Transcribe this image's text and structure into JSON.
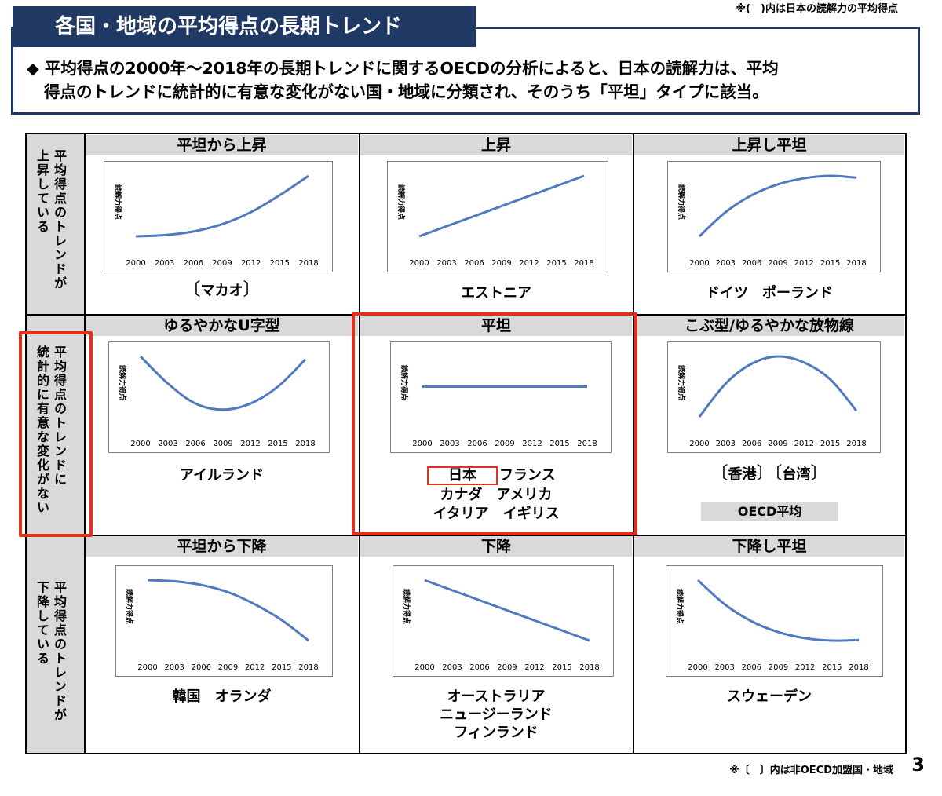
{
  "title": "各国・地域の平均得点の長期トレンド",
  "top_note": "※(　)内は日本の読解力の平均得点",
  "summary": {
    "line1": "◆ 平均得点の2000年～2018年の長期トレンドに関するOECDの分析によると、日本の読解力は、平均",
    "line2": "得点のトレンドに統計的に有意な変化がない国・地域に分類され、そのうち「平坦」タイプに該当。"
  },
  "rows": [
    {
      "label_main": "平均得点のトレンドが",
      "label_sub": "上昇している"
    },
    {
      "label_main": "平均得点のトレンドに",
      "label_sub": "統計的に有意な変化がない"
    },
    {
      "label_main": "平均得点のトレンドが",
      "label_sub": "下降している"
    }
  ],
  "cells": [
    {
      "category": "平坦から上昇",
      "countries": [
        "マカオ"
      ]
    },
    {
      "category": "上昇",
      "countries": [
        "エストニア"
      ]
    },
    {
      "category": "上昇し平坦",
      "countries": [
        "ドイツ　ポーランド"
      ]
    },
    {
      "category": "ゆるやかなU字型",
      "countries": [
        "アイルランド"
      ]
    },
    {
      "category": "平坦",
      "countries": [
        "日本",
        "フランス",
        "カナダ　アメリカ",
        "イタリア　イギリス"
      ]
    },
    {
      "category": "こぶ型/ゆるやかな放物線",
      "countries": [
        "香港",
        "台湾"
      ],
      "oecd_avg": "OECD平均"
    },
    {
      "category": "平坦から下降",
      "countries": [
        "韓国　オランダ"
      ]
    },
    {
      "category": "下降",
      "countries": [
        "オーストラリア",
        "ニュージーランド",
        "フィンランド"
      ]
    },
    {
      "category": "下降し平坦",
      "countries": [
        "スウェーデン"
      ]
    }
  ],
  "chart_data": [
    {
      "type": "line",
      "ylabel": "読解力得点",
      "x": [
        2000,
        2003,
        2006,
        2009,
        2012,
        2015,
        2018
      ],
      "shape": "flat-then-rise",
      "trend": [
        0.0,
        0.02,
        0.08,
        0.2,
        0.4,
        0.68,
        1.0
      ]
    },
    {
      "type": "line",
      "ylabel": "読解力得点",
      "x": [
        2000,
        2003,
        2006,
        2009,
        2012,
        2015,
        2018
      ],
      "shape": "rise",
      "trend": [
        0.0,
        0.167,
        0.333,
        0.5,
        0.667,
        0.833,
        1.0
      ]
    },
    {
      "type": "line",
      "ylabel": "読解力得点",
      "x": [
        2000,
        2003,
        2006,
        2009,
        2012,
        2015,
        2018
      ],
      "shape": "rise-then-flat",
      "trend": [
        0.0,
        0.4,
        0.68,
        0.86,
        0.96,
        1.0,
        0.97
      ]
    },
    {
      "type": "line",
      "ylabel": "読解力得点",
      "x": [
        2000,
        2003,
        2006,
        2009,
        2012,
        2015,
        2018
      ],
      "shape": "u-shape",
      "trend": [
        1.0,
        0.55,
        0.22,
        0.12,
        0.22,
        0.5,
        0.95
      ]
    },
    {
      "type": "line",
      "ylabel": "読解力得点",
      "x": [
        2000,
        2003,
        2006,
        2009,
        2012,
        2015,
        2018
      ],
      "shape": "flat",
      "trend": [
        0.5,
        0.5,
        0.5,
        0.5,
        0.5,
        0.5,
        0.5
      ]
    },
    {
      "type": "line",
      "ylabel": "読解力得点",
      "x": [
        2000,
        2003,
        2006,
        2009,
        2012,
        2015,
        2018
      ],
      "shape": "hump",
      "trend": [
        0.0,
        0.55,
        0.88,
        1.0,
        0.9,
        0.62,
        0.1
      ]
    },
    {
      "type": "line",
      "ylabel": "読解力得点",
      "x": [
        2000,
        2003,
        2006,
        2009,
        2012,
        2015,
        2018
      ],
      "shape": "flat-then-decline",
      "trend": [
        1.0,
        0.98,
        0.92,
        0.8,
        0.6,
        0.34,
        0.0
      ]
    },
    {
      "type": "line",
      "ylabel": "読解力得点",
      "x": [
        2000,
        2003,
        2006,
        2009,
        2012,
        2015,
        2018
      ],
      "shape": "decline",
      "trend": [
        1.0,
        0.833,
        0.667,
        0.5,
        0.333,
        0.167,
        0.0
      ]
    },
    {
      "type": "line",
      "ylabel": "読解力得点",
      "x": [
        2000,
        2003,
        2006,
        2009,
        2012,
        2015,
        2018
      ],
      "shape": "decline-then-flat",
      "trend": [
        1.0,
        0.6,
        0.32,
        0.14,
        0.04,
        0.0,
        0.01
      ]
    }
  ],
  "colors": {
    "title_bg": "#1f3864",
    "line": "#4f7ac0",
    "highlight": "#e0301e",
    "category_bg": "#d9d9d9"
  },
  "bottom_note": "※〔　〕内は非OECD加盟国・地域",
  "page_number": "3"
}
